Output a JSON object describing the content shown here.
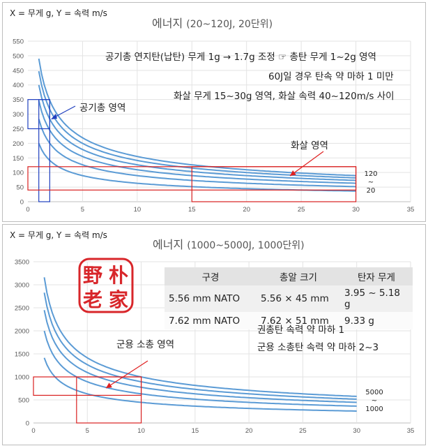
{
  "chart_data": [
    {
      "type": "line",
      "axis_label": "X = 무게 g, Y = 속력 m/s",
      "title_main": "에너지 ",
      "title_paren": "(20~120J, 20단위)",
      "x_ticks": [
        "0",
        "5",
        "10",
        "15",
        "20",
        "25",
        "30",
        "35"
      ],
      "y_ticks": [
        "0",
        "50",
        "100",
        "150",
        "200",
        "250",
        "300",
        "350",
        "400",
        "450",
        "500",
        "550"
      ],
      "xlim": [
        0,
        35
      ],
      "ylim": [
        0,
        550
      ],
      "grid": true,
      "x_start": 1,
      "x_end": 30,
      "series": [
        {
          "energy": 20,
          "color": "#5b9bd5"
        },
        {
          "energy": 40,
          "color": "#5b9bd5"
        },
        {
          "energy": 60,
          "color": "#5b9bd5"
        },
        {
          "energy": 80,
          "color": "#5b9bd5"
        },
        {
          "energy": 100,
          "color": "#5b9bd5"
        },
        {
          "energy": 120,
          "color": "#5b9bd5"
        }
      ],
      "annotations": {
        "note1": "공기총 연지탄(납탄) 무게 1g → 1.7g 조정 ☞ 총탄 무게 1~2g 영역",
        "note2": "60J일 경우 탄속 약 마하 1 미만",
        "note3": "화살 무게 15~30g 영역, 화살 속력 40~120m/s 사이",
        "airgun_label": "공기총 영역",
        "arrow_label": "화살 영역",
        "range_top": "120",
        "range_mid": "~",
        "range_bottom": "20"
      },
      "regions": {
        "airgun_blue": {
          "x": [
            1,
            2
          ],
          "y": [
            0,
            350
          ]
        },
        "airgun_outer": {
          "x": [
            0,
            2
          ],
          "y": [
            250,
            350
          ]
        },
        "arrow_wide": {
          "x": [
            0,
            30
          ],
          "y": [
            40,
            120
          ]
        },
        "arrow_box": {
          "x": [
            15,
            30
          ],
          "y": [
            0,
            120
          ]
        }
      }
    },
    {
      "type": "line",
      "axis_label": "X = 무게 g, Y = 속력 m/s",
      "title_main": "에너지 ",
      "title_paren": "(1000~5000J, 1000단위)",
      "x_ticks": [
        "0",
        "5",
        "10",
        "15",
        "20",
        "25",
        "30",
        "35"
      ],
      "y_ticks": [
        "0",
        "500",
        "1000",
        "1500",
        "2000",
        "2500",
        "3000",
        "3500"
      ],
      "xlim": [
        0,
        35
      ],
      "ylim": [
        0,
        3500
      ],
      "grid": true,
      "x_start": 1,
      "x_end": 30,
      "series": [
        {
          "energy": 1000,
          "color": "#5b9bd5"
        },
        {
          "energy": 2000,
          "color": "#5b9bd5"
        },
        {
          "energy": 3000,
          "color": "#5b9bd5"
        },
        {
          "energy": 4000,
          "color": "#5b9bd5"
        },
        {
          "energy": 5000,
          "color": "#5b9bd5"
        }
      ],
      "annotations": {
        "military_label": "군용 소총 영역",
        "note1": "권총탄 속력 약 마하 1",
        "note2": "군용 소총탄 속력 약 마하 2~3",
        "range_top": "5000",
        "range_mid": "~",
        "range_bottom": "1000"
      },
      "regions": {
        "rifle_wide": {
          "x": [
            0,
            10
          ],
          "y": [
            600,
            1000
          ]
        },
        "rifle_box": {
          "x": [
            4,
            10
          ],
          "y": [
            0,
            1000
          ]
        }
      },
      "table": {
        "headers": [
          "구경",
          "총알 크기",
          "탄자 무게"
        ],
        "rows": [
          [
            "5.56 mm NATO",
            "5.56 × 45 mm",
            "3.95 ~ 5.18 g"
          ],
          [
            "7.62 mm NATO",
            "7.62 × 51 mm",
            "9.33 g"
          ]
        ]
      }
    }
  ],
  "seal": {
    "chars": [
      "野",
      "朴",
      "老",
      "家"
    ],
    "color": "#d8262a"
  }
}
